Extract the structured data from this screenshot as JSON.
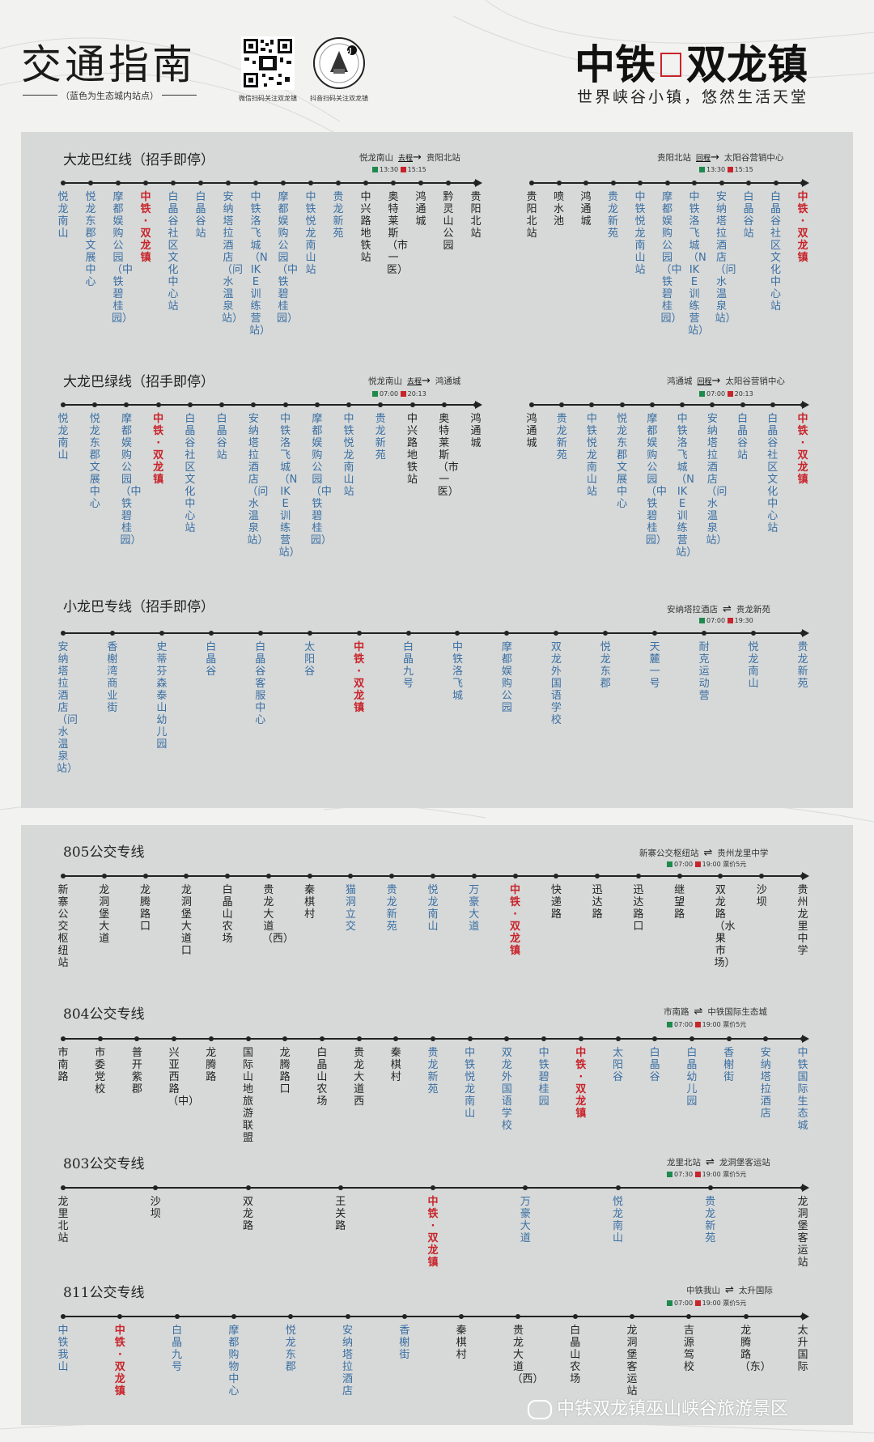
{
  "header": {
    "title": "交通指南",
    "subtitle": "（蓝色为生态城内站点）",
    "qr_caption": "微信扫码关注双龙镇",
    "douyin_caption": "抖音扫码关注双龙镇",
    "brand_left": "中铁",
    "brand_right": "双龙镇",
    "slogan": "世界峡谷小镇，悠然生活天堂"
  },
  "colors": {
    "blue_station": "#3a6fa3",
    "red_station": "#c8242b",
    "panel": "#d7d9d8",
    "go_square": "#1e8a4d",
    "return_square": "#c8242b"
  },
  "icons": [
    "qr-code-icon",
    "douyin-logo-icon",
    "wechat-icon",
    "right-arrow-icon",
    "bidirectional-arrow-icon"
  ],
  "lines": [
    {
      "id": "red",
      "title": "大龙巴红线（招手即停）",
      "directions": [
        {
          "from": "悦龙南山",
          "label": "去程",
          "to": "贵阳北站",
          "time_green": "13:30",
          "time_red": "15:15",
          "stations": [
            {
              "name": "悦龙南山",
              "c": "blue"
            },
            {
              "name": "悦龙东郡文展中心",
              "c": "blue"
            },
            {
              "name": "摩都娱购公园（中铁碧桂园）",
              "c": "blue"
            },
            {
              "name": "中铁·双龙镇",
              "c": "red"
            },
            {
              "name": "白晶谷社区文化中心站",
              "c": "blue"
            },
            {
              "name": "白晶谷站",
              "c": "blue"
            },
            {
              "name": "安纳塔拉酒店（问水温泉站）",
              "c": "blue"
            },
            {
              "name": "中铁洛飞城（NIKE训练营站）",
              "c": "blue"
            },
            {
              "name": "摩都娱购公园（中铁碧桂园）",
              "c": "blue"
            },
            {
              "name": "中铁悦龙南山站",
              "c": "blue"
            },
            {
              "name": "贵龙新苑",
              "c": "blue"
            },
            {
              "name": "中兴路地铁站",
              "c": "black"
            },
            {
              "name": "奥特莱斯（市一医）",
              "c": "black"
            },
            {
              "name": "鸿通城",
              "c": "black"
            },
            {
              "name": "黔灵山公园",
              "c": "black"
            },
            {
              "name": "贵阳北站",
              "c": "black"
            }
          ]
        },
        {
          "from": "贵阳北站",
          "label": "回程",
          "to": "太阳谷营销中心",
          "time_green": "13:30",
          "time_red": "15:15",
          "stations": [
            {
              "name": "贵阳北站",
              "c": "black"
            },
            {
              "name": "喷水池",
              "c": "black"
            },
            {
              "name": "鸿通城",
              "c": "black"
            },
            {
              "name": "贵龙新苑",
              "c": "blue"
            },
            {
              "name": "中铁悦龙南山站",
              "c": "blue"
            },
            {
              "name": "摩都娱购公园（中铁碧桂园）",
              "c": "blue"
            },
            {
              "name": "中铁洛飞城（NIKE训练营站）",
              "c": "blue"
            },
            {
              "name": "安纳塔拉酒店（问水温泉站）",
              "c": "blue"
            },
            {
              "name": "白晶谷站",
              "c": "blue"
            },
            {
              "name": "白晶谷社区文化中心站",
              "c": "blue"
            },
            {
              "name": "中铁·双龙镇",
              "c": "red"
            }
          ]
        }
      ]
    },
    {
      "id": "green",
      "title": "大龙巴绿线（招手即停）",
      "directions": [
        {
          "from": "悦龙南山",
          "label": "去程",
          "to": "鸿通城",
          "time_green": "07:00",
          "time_red": "20:13",
          "stations": [
            {
              "name": "悦龙南山",
              "c": "blue"
            },
            {
              "name": "悦龙东郡文展中心",
              "c": "blue"
            },
            {
              "name": "摩都娱购公园（中铁碧桂园）",
              "c": "blue"
            },
            {
              "name": "中铁·双龙镇",
              "c": "red"
            },
            {
              "name": "白晶谷社区文化中心站",
              "c": "blue"
            },
            {
              "name": "白晶谷站",
              "c": "blue"
            },
            {
              "name": "安纳塔拉酒店（问水温泉站）",
              "c": "blue"
            },
            {
              "name": "中铁洛飞城（NIKE训练营站）",
              "c": "blue"
            },
            {
              "name": "摩都娱购公园（中铁碧桂园）",
              "c": "blue"
            },
            {
              "name": "中铁悦龙南山站",
              "c": "blue"
            },
            {
              "name": "贵龙新苑",
              "c": "blue"
            },
            {
              "name": "中兴路地铁站",
              "c": "black"
            },
            {
              "name": "奥特莱斯（市一医）",
              "c": "black"
            },
            {
              "name": "鸿通城",
              "c": "black"
            }
          ]
        },
        {
          "from": "鸿通城",
          "label": "回程",
          "to": "太阳谷营销中心",
          "time_green": "07:00",
          "time_red": "20:13",
          "stations": [
            {
              "name": "鸿通城",
              "c": "black"
            },
            {
              "name": "贵龙新苑",
              "c": "blue"
            },
            {
              "name": "中铁悦龙南山站",
              "c": "blue"
            },
            {
              "name": "悦龙东郡文展中心",
              "c": "blue"
            },
            {
              "name": "摩都娱购公园（中铁碧桂园）",
              "c": "blue"
            },
            {
              "name": "中铁洛飞城（NIKE训练营站）",
              "c": "blue"
            },
            {
              "name": "安纳塔拉酒店（问水温泉站）",
              "c": "blue"
            },
            {
              "name": "白晶谷站",
              "c": "blue"
            },
            {
              "name": "白晶谷社区文化中心站",
              "c": "blue"
            },
            {
              "name": "中铁·双龙镇",
              "c": "red"
            }
          ]
        }
      ]
    },
    {
      "id": "small",
      "title": "小龙巴专线（招手即停）",
      "directions": [
        {
          "from": "安纳塔拉酒店",
          "label": "",
          "to": "贵龙新苑",
          "time_green": "07:00",
          "time_red": "19:30",
          "stations": [
            {
              "name": "安纳塔拉酒店（问水温泉站）",
              "c": "blue"
            },
            {
              "name": "香榭湾商业街",
              "c": "blue"
            },
            {
              "name": "史蒂芬森泰山幼儿园",
              "c": "blue"
            },
            {
              "name": "白晶谷",
              "c": "blue"
            },
            {
              "name": "白晶谷客服中心",
              "c": "blue"
            },
            {
              "name": "太阳谷",
              "c": "blue"
            },
            {
              "name": "中铁·双龙镇",
              "c": "red"
            },
            {
              "name": "白晶九号",
              "c": "blue"
            },
            {
              "name": "中铁洛飞城",
              "c": "blue"
            },
            {
              "name": "摩都娱购公园",
              "c": "blue"
            },
            {
              "name": "双龙外国语学校",
              "c": "blue"
            },
            {
              "name": "悦龙东郡",
              "c": "blue"
            },
            {
              "name": "天麓一号",
              "c": "blue"
            },
            {
              "name": "耐克运动营",
              "c": "blue"
            },
            {
              "name": "悦龙南山",
              "c": "blue"
            },
            {
              "name": "贵龙新苑",
              "c": "blue"
            }
          ]
        }
      ]
    },
    {
      "id": "805",
      "title": "805公交专线",
      "directions": [
        {
          "from": "新寨公交枢纽站",
          "label": "",
          "to": "贵州龙里中学",
          "time_green": "07:00",
          "time_red": "19:00",
          "fare": "票价5元",
          "stations": [
            {
              "name": "新寨公交枢纽站",
              "c": "black"
            },
            {
              "name": "龙洞堡大道",
              "c": "black"
            },
            {
              "name": "龙腾路口",
              "c": "black"
            },
            {
              "name": "龙洞堡大道口",
              "c": "black"
            },
            {
              "name": "白晶山农场",
              "c": "black"
            },
            {
              "name": "贵龙大道（西）",
              "c": "black"
            },
            {
              "name": "秦棋村",
              "c": "black"
            },
            {
              "name": "猫洞立交",
              "c": "blue"
            },
            {
              "name": "贵龙新苑",
              "c": "blue"
            },
            {
              "name": "悦龙南山",
              "c": "blue"
            },
            {
              "name": "万豪大道",
              "c": "blue"
            },
            {
              "name": "中铁·双龙镇",
              "c": "red"
            },
            {
              "name": "快递路",
              "c": "black"
            },
            {
              "name": "迅达路",
              "c": "black"
            },
            {
              "name": "迅达路口",
              "c": "black"
            },
            {
              "name": "继望路",
              "c": "black"
            },
            {
              "name": "双龙路（水果市场）",
              "c": "black"
            },
            {
              "name": "沙坝",
              "c": "black"
            },
            {
              "name": "贵州龙里中学",
              "c": "black"
            }
          ]
        }
      ]
    },
    {
      "id": "804",
      "title": "804公交专线",
      "directions": [
        {
          "from": "市南路",
          "label": "",
          "to": "中铁国际生态城",
          "time_green": "07:00",
          "time_red": "19:00",
          "fare": "票价5元",
          "stations": [
            {
              "name": "市南路",
              "c": "black"
            },
            {
              "name": "市委党校",
              "c": "black"
            },
            {
              "name": "普开紫郡",
              "c": "black"
            },
            {
              "name": "兴亚西路（中）",
              "c": "black"
            },
            {
              "name": "龙腾路",
              "c": "black"
            },
            {
              "name": "国际山地旅游联盟",
              "c": "black"
            },
            {
              "name": "龙腾路口",
              "c": "black"
            },
            {
              "name": "白晶山农场",
              "c": "black"
            },
            {
              "name": "贵龙大道西",
              "c": "black"
            },
            {
              "name": "秦棋村",
              "c": "black"
            },
            {
              "name": "贵龙新苑",
              "c": "blue"
            },
            {
              "name": "中铁悦龙南山",
              "c": "blue"
            },
            {
              "name": "双龙外国语学校",
              "c": "blue"
            },
            {
              "name": "中铁碧桂园",
              "c": "blue"
            },
            {
              "name": "中铁·双龙镇",
              "c": "red"
            },
            {
              "name": "太阳谷",
              "c": "blue"
            },
            {
              "name": "白晶谷",
              "c": "blue"
            },
            {
              "name": "白晶幼儿园",
              "c": "blue"
            },
            {
              "name": "香榭街",
              "c": "blue"
            },
            {
              "name": "安纳塔拉酒店",
              "c": "blue"
            },
            {
              "name": "中铁国际生态城",
              "c": "blue"
            }
          ]
        }
      ]
    },
    {
      "id": "803",
      "title": "803公交专线",
      "directions": [
        {
          "from": "龙里北站",
          "label": "",
          "to": "龙洞堡客运站",
          "time_green": "07:30",
          "time_red": "19:00",
          "fare": "票价5元",
          "stations": [
            {
              "name": "龙里北站",
              "c": "black"
            },
            {
              "name": "沙坝",
              "c": "black"
            },
            {
              "name": "双龙路",
              "c": "black"
            },
            {
              "name": "王关路",
              "c": "black"
            },
            {
              "name": "中铁·双龙镇",
              "c": "red"
            },
            {
              "name": "万豪大道",
              "c": "blue"
            },
            {
              "name": "悦龙南山",
              "c": "blue"
            },
            {
              "name": "贵龙新苑",
              "c": "blue"
            },
            {
              "name": "龙洞堡客运站",
              "c": "black"
            }
          ]
        }
      ]
    },
    {
      "id": "811",
      "title": "811公交专线",
      "directions": [
        {
          "from": "中铁我山",
          "label": "",
          "to": "太升国际",
          "time_green": "07:00",
          "time_red": "19:00",
          "fare": "票价5元",
          "stations": [
            {
              "name": "中铁我山",
              "c": "blue"
            },
            {
              "name": "中铁·双龙镇",
              "c": "red"
            },
            {
              "name": "白晶九号",
              "c": "blue"
            },
            {
              "name": "摩都购物中心",
              "c": "blue"
            },
            {
              "name": "悦龙东郡",
              "c": "blue"
            },
            {
              "name": "安纳塔拉酒店",
              "c": "blue"
            },
            {
              "name": "香榭街",
              "c": "blue"
            },
            {
              "name": "秦棋村",
              "c": "black"
            },
            {
              "name": "贵龙大道（西）",
              "c": "black"
            },
            {
              "name": "白晶山农场",
              "c": "black"
            },
            {
              "name": "龙洞堡客运站",
              "c": "black"
            },
            {
              "name": "吉源驾校",
              "c": "black"
            },
            {
              "name": "龙腾路（东）",
              "c": "black"
            },
            {
              "name": "太升国际",
              "c": "black"
            }
          ]
        }
      ]
    }
  ],
  "footer": {
    "watermark": "中铁双龙镇巫山峡谷旅游景区"
  }
}
